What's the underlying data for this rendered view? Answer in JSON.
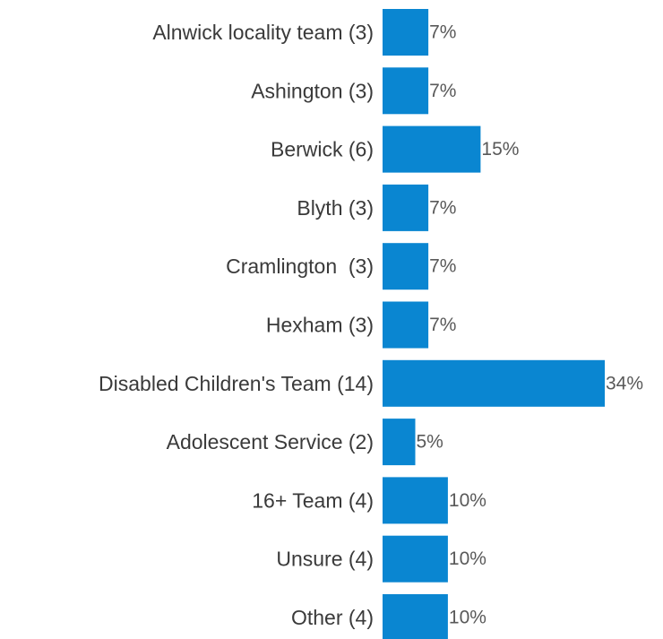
{
  "chart_data": {
    "type": "bar",
    "orientation": "horizontal",
    "categories": [
      "Alnwick locality team (3)",
      "Ashington (3)",
      "Berwick (6)",
      "Blyth (3)",
      "Cramlington  (3)",
      "Hexham (3)",
      "Disabled Children's Team (14)",
      "Adolescent Service (2)",
      "16+ Team (4)",
      "Unsure (4)",
      "Other (4)"
    ],
    "values": [
      7,
      7,
      15,
      7,
      7,
      7,
      34,
      5,
      10,
      10,
      10
    ],
    "data_labels": [
      "7%",
      "7%",
      "15%",
      "7%",
      "7%",
      "7%",
      "34%",
      "5%",
      "10%",
      "10%",
      "10%"
    ],
    "unit": "%",
    "title": "",
    "xlabel": "",
    "ylabel": "",
    "xlim": [
      0,
      34
    ],
    "grid": false,
    "legend": "none",
    "bar_color": "#0a86d1",
    "category_text_color": "#3a3a3a",
    "value_text_color": "#595959"
  }
}
